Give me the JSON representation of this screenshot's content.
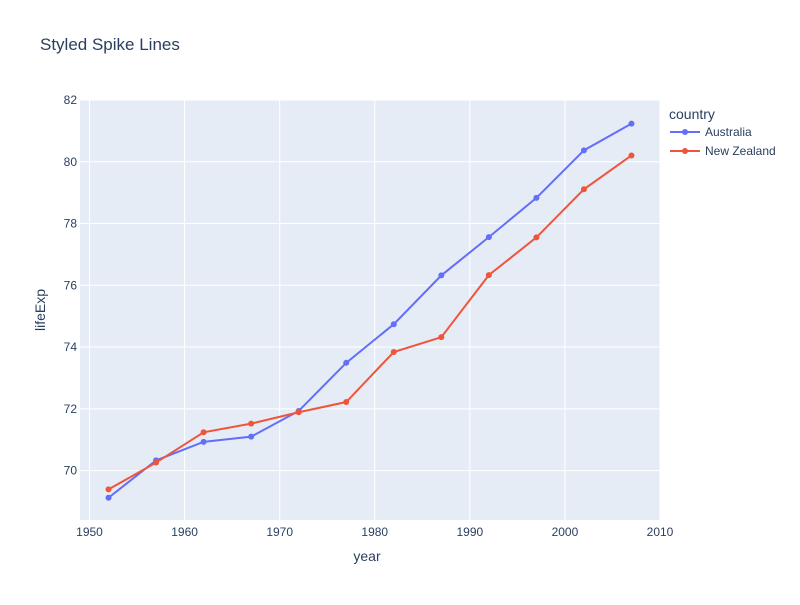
{
  "chart_data": {
    "type": "line",
    "title": "Styled Spike Lines",
    "xlabel": "year",
    "ylabel": "lifeExp",
    "xlim": [
      1949,
      2010
    ],
    "ylim": [
      68.4,
      82
    ],
    "x_ticks": [
      1950,
      1960,
      1970,
      1980,
      1990,
      2000,
      2010
    ],
    "y_ticks": [
      70,
      72,
      74,
      76,
      78,
      80,
      82
    ],
    "grid": true,
    "legend": {
      "title": "country",
      "position": "top-right"
    },
    "x": [
      1952,
      1957,
      1962,
      1967,
      1972,
      1977,
      1982,
      1987,
      1992,
      1997,
      2002,
      2007
    ],
    "series": [
      {
        "name": "Australia",
        "color": "#636efa",
        "values": [
          69.12,
          70.33,
          70.93,
          71.1,
          71.93,
          73.49,
          74.74,
          76.32,
          77.56,
          78.83,
          80.37,
          81.235
        ]
      },
      {
        "name": "New Zealand",
        "color": "#ef553b",
        "values": [
          69.39,
          70.26,
          71.24,
          71.52,
          71.89,
          72.22,
          73.84,
          74.32,
          76.33,
          77.55,
          79.11,
          80.204
        ]
      }
    ]
  }
}
